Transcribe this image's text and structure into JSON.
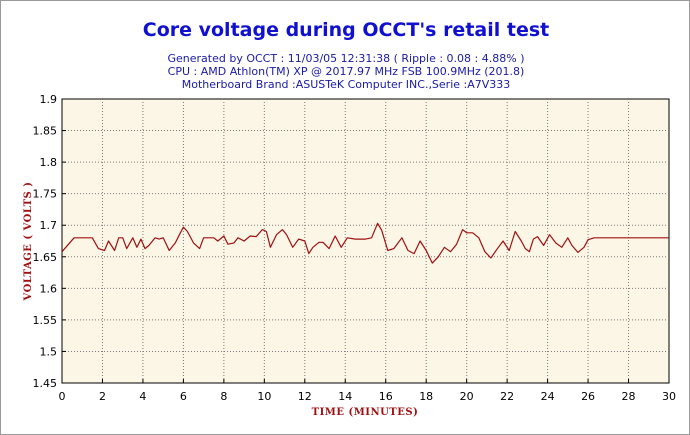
{
  "chart_data": {
    "type": "line",
    "title": "Core voltage during OCCT's retail test",
    "subtitle_lines": [
      "Generated by OCCT : 11/03/05 12:31:38 ( Ripple : 0.08 : 4.88% )",
      "CPU : AMD Athlon(TM) XP @ 2017.97 MHz FSB 100.9MHz (201.8)",
      "Motherboard Brand :ASUSTeK Computer INC.,Serie :A7V333"
    ],
    "xlabel": "TIME (MINUTES)",
    "ylabel": "VOLTAGE ( VOLTS )",
    "xlim": [
      0,
      30
    ],
    "ylim": [
      1.45,
      1.9
    ],
    "x_ticks": [
      "0",
      "2",
      "4",
      "6",
      "8",
      "10",
      "12",
      "14",
      "16",
      "18",
      "20",
      "22",
      "24",
      "26",
      "28",
      "30"
    ],
    "y_ticks": [
      "1.45",
      "1.5",
      "1.55",
      "1.6",
      "1.65",
      "1.7",
      "1.75",
      "1.8",
      "1.85",
      "1.9"
    ],
    "grid": true,
    "series": [
      {
        "color": "#a01010",
        "x": [
          0,
          0.6,
          1.5,
          1.8,
          2.1,
          2.3,
          2.6,
          2.8,
          3.0,
          3.2,
          3.5,
          3.7,
          3.9,
          4.1,
          4.3,
          4.6,
          4.8,
          5.0,
          5.3,
          5.6,
          5.8,
          6.0,
          6.2,
          6.5,
          6.8,
          7.0,
          7.2,
          7.5,
          7.7,
          8.0,
          8.2,
          8.5,
          8.7,
          9.0,
          9.3,
          9.6,
          9.9,
          10.1,
          10.3,
          10.6,
          10.9,
          11.1,
          11.4,
          11.7,
          12.0,
          12.2,
          12.4,
          12.7,
          12.9,
          13.2,
          13.5,
          13.8,
          14.1,
          14.5,
          15.0,
          15.3,
          15.6,
          15.8,
          16.1,
          16.4,
          16.8,
          17.1,
          17.4,
          17.7,
          18.0,
          18.3,
          18.6,
          18.9,
          19.2,
          19.5,
          19.8,
          20.0,
          20.3,
          20.6,
          20.9,
          21.2,
          21.5,
          21.8,
          22.1,
          22.4,
          22.7,
          22.9,
          23.1,
          23.3,
          23.5,
          23.8,
          24.1,
          24.4,
          24.7,
          25.0,
          25.2,
          25.5,
          25.8,
          26.0,
          26.3,
          27.0,
          28.0,
          29.0,
          30.0
        ],
        "values": [
          1.658,
          1.68,
          1.68,
          1.663,
          1.66,
          1.675,
          1.66,
          1.68,
          1.68,
          1.663,
          1.68,
          1.665,
          1.678,
          1.663,
          1.668,
          1.68,
          1.678,
          1.68,
          1.66,
          1.672,
          1.685,
          1.697,
          1.69,
          1.672,
          1.663,
          1.68,
          1.68,
          1.68,
          1.675,
          1.683,
          1.67,
          1.672,
          1.68,
          1.675,
          1.683,
          1.682,
          1.693,
          1.69,
          1.665,
          1.685,
          1.693,
          1.685,
          1.665,
          1.678,
          1.675,
          1.655,
          1.665,
          1.673,
          1.673,
          1.663,
          1.683,
          1.665,
          1.68,
          1.678,
          1.678,
          1.68,
          1.703,
          1.692,
          1.66,
          1.663,
          1.68,
          1.66,
          1.655,
          1.675,
          1.66,
          1.64,
          1.65,
          1.665,
          1.658,
          1.67,
          1.693,
          1.688,
          1.688,
          1.68,
          1.658,
          1.648,
          1.662,
          1.675,
          1.66,
          1.69,
          1.675,
          1.663,
          1.658,
          1.678,
          1.682,
          1.668,
          1.685,
          1.672,
          1.665,
          1.68,
          1.668,
          1.657,
          1.665,
          1.677,
          1.68,
          1.68,
          1.68,
          1.68,
          1.68
        ]
      }
    ]
  }
}
